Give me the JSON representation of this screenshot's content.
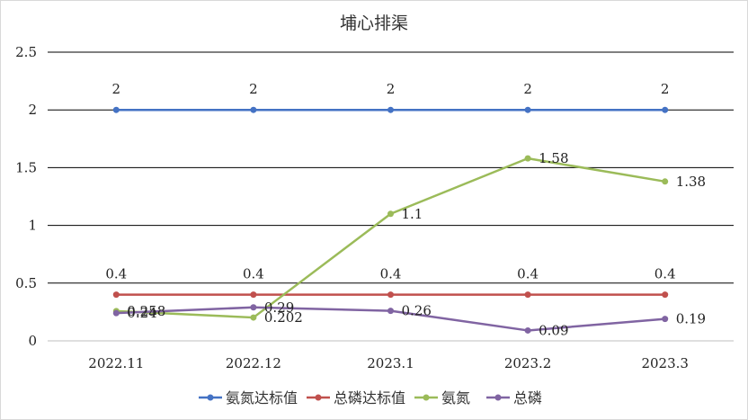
{
  "chart_data": {
    "type": "line",
    "title": "埔心排渠",
    "xlabel": "",
    "ylabel": "",
    "categories": [
      "2022.11",
      "2022.12",
      "2023.1",
      "2023.2",
      "2023.3"
    ],
    "y_tick_labels": [
      "0",
      "0.5",
      "1",
      "1.5",
      "2",
      "2.5"
    ],
    "ylim": [
      0,
      2.5
    ],
    "grid": "horizontal",
    "legend_position": "bottom",
    "series": [
      {
        "name": "氨氮达标值",
        "color": "#4472c4",
        "values": [
          2,
          2,
          2,
          2,
          2
        ],
        "labels": [
          "2",
          "2",
          "2",
          "2",
          "2"
        ]
      },
      {
        "name": "总磷达标值",
        "color": "#c0504d",
        "values": [
          0.4,
          0.4,
          0.4,
          0.4,
          0.4
        ],
        "labels": [
          "0.4",
          "0.4",
          "0.4",
          "0.4",
          "0.4"
        ]
      },
      {
        "name": "氨氮",
        "color": "#9bbb59",
        "values": [
          0.258,
          0.202,
          1.1,
          1.58,
          1.38
        ],
        "labels": [
          "0.258",
          "0.202",
          "1.1",
          "1.58",
          "1.38"
        ]
      },
      {
        "name": "总磷",
        "color": "#8064a2",
        "values": [
          0.24,
          0.29,
          0.26,
          0.09,
          0.19
        ],
        "labels": [
          "0.24",
          "0.29",
          "0.26",
          "0.09",
          "0.19"
        ]
      }
    ]
  }
}
